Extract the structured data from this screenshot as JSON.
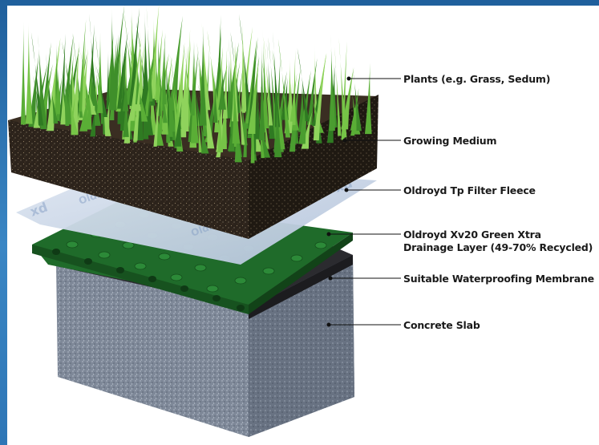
{
  "diagram": {
    "labels": [
      {
        "id": "plants",
        "text": "Plants (e.g. Grass, Sedum)"
      },
      {
        "id": "growing-medium",
        "text": "Growing Medium"
      },
      {
        "id": "filter-fleece",
        "text": "Oldroyd Tp Filter Fleece"
      },
      {
        "id": "drainage-layer-line1",
        "text": "Oldroyd Xv20 Green Xtra"
      },
      {
        "id": "drainage-layer-line2",
        "text": "Drainage Layer (49-70% Recycled)"
      },
      {
        "id": "waterproofing",
        "text": "Suitable Waterproofing Membrane"
      },
      {
        "id": "concrete",
        "text": "Concrete Slab"
      }
    ],
    "colors": {
      "frame": "#2b6ea8",
      "grass": "#4f9a32",
      "soil": "#2e241c",
      "fleece": "#c9d5e6",
      "drainage": "#1f6b2a",
      "membrane": "#2c2c2e",
      "concrete": "#7f8a99"
    }
  }
}
